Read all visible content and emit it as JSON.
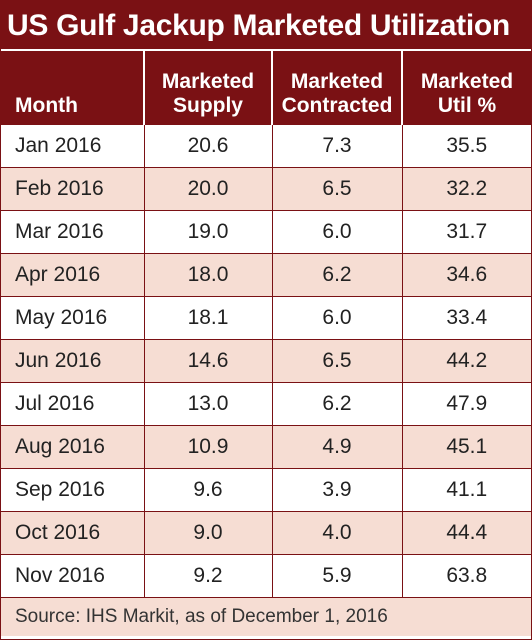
{
  "chart_data": {
    "type": "table",
    "title": "US Gulf Jackup Marketed Utilization",
    "columns": [
      "Month",
      "Marketed\nSupply",
      "Marketed\nContracted",
      "Marketed\nUtil %"
    ],
    "rows": [
      [
        "Jan 2016",
        "20.6",
        "7.3",
        "35.5"
      ],
      [
        "Feb 2016",
        "20.0",
        "6.5",
        "32.2"
      ],
      [
        "Mar 2016",
        "19.0",
        "6.0",
        "31.7"
      ],
      [
        "Apr 2016",
        "18.0",
        "6.2",
        "34.6"
      ],
      [
        "May 2016",
        "18.1",
        "6.0",
        "33.4"
      ],
      [
        "Jun 2016",
        "14.6",
        "6.5",
        "44.2"
      ],
      [
        "Jul 2016",
        "13.0",
        "6.2",
        "47.9"
      ],
      [
        "Aug 2016",
        "10.9",
        "4.9",
        "45.1"
      ],
      [
        "Sep 2016",
        "9.6",
        "3.9",
        "41.1"
      ],
      [
        "Oct 2016",
        "9.0",
        "4.0",
        "44.4"
      ],
      [
        "Nov 2016",
        "9.2",
        "5.9",
        "63.8"
      ]
    ],
    "source": "Source: IHS Markit, as of December 1, 2016"
  },
  "colors": {
    "header_background": "#7a1114",
    "header_text": "#ffffff",
    "alternate_row": "#f6ddd3",
    "row": "#ffffff",
    "border": "#7a1114"
  }
}
